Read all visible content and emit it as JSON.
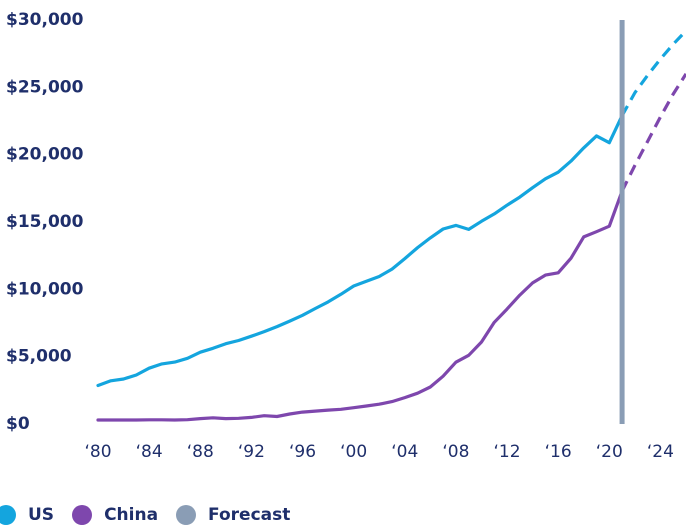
{
  "chart_data": {
    "type": "line",
    "title": "",
    "xlabel": "",
    "ylabel": "",
    "xlim": [
      1980,
      2026
    ],
    "ylim": [
      0,
      30000
    ],
    "grid": false,
    "legend_position": "bottom-left",
    "y_ticks": [
      {
        "value": 0,
        "label": "$0"
      },
      {
        "value": 5000,
        "label": "$5,000"
      },
      {
        "value": 10000,
        "label": "$10,000"
      },
      {
        "value": 15000,
        "label": "$15,000"
      },
      {
        "value": 20000,
        "label": "$20,000"
      },
      {
        "value": 25000,
        "label": "$25,000"
      },
      {
        "value": 30000,
        "label": "$30,000"
      }
    ],
    "x_ticks": [
      {
        "value": 1980,
        "label": "‘80"
      },
      {
        "value": 1984,
        "label": "‘84"
      },
      {
        "value": 1988,
        "label": "‘88"
      },
      {
        "value": 1992,
        "label": "‘92"
      },
      {
        "value": 1996,
        "label": "‘96"
      },
      {
        "value": 2000,
        "label": "‘00"
      },
      {
        "value": 2004,
        "label": "‘04"
      },
      {
        "value": 2008,
        "label": "‘08"
      },
      {
        "value": 2012,
        "label": "‘12"
      },
      {
        "value": 2016,
        "label": "‘16"
      },
      {
        "value": 2020,
        "label": "‘20"
      },
      {
        "value": 2024,
        "label": "‘24"
      }
    ],
    "forecast_year": 2021,
    "series": [
      {
        "name": "US",
        "color": "#14a5de",
        "x": [
          1980,
          1981,
          1982,
          1983,
          1984,
          1985,
          1986,
          1987,
          1988,
          1989,
          1990,
          1991,
          1992,
          1993,
          1994,
          1995,
          1996,
          1997,
          1998,
          1999,
          2000,
          2001,
          2002,
          2003,
          2004,
          2005,
          2006,
          2007,
          2008,
          2009,
          2010,
          2011,
          2012,
          2013,
          2014,
          2015,
          2016,
          2017,
          2018,
          2019,
          2020,
          2021
        ],
        "values": [
          2860,
          3210,
          3340,
          3640,
          4140,
          4460,
          4600,
          4880,
          5330,
          5620,
          5960,
          6200,
          6520,
          6860,
          7230,
          7640,
          8070,
          8580,
          9070,
          9630,
          10250,
          10600,
          10950,
          11500,
          12280,
          13100,
          13820,
          14480,
          14750,
          14450,
          15050,
          15600,
          16250,
          16850,
          17550,
          18210,
          18700,
          19520,
          20500,
          21390,
          20890,
          22900
        ],
        "forecast_x": [
          2021,
          2022,
          2023,
          2024,
          2025,
          2026
        ],
        "forecast_values": [
          22900,
          24600,
          25900,
          27100,
          28200,
          29200
        ]
      },
      {
        "name": "China",
        "color": "#7e47ad",
        "x": [
          1980,
          1981,
          1982,
          1983,
          1984,
          1985,
          1986,
          1987,
          1988,
          1989,
          1990,
          1991,
          1992,
          1993,
          1994,
          1995,
          1996,
          1997,
          1998,
          1999,
          2000,
          2001,
          2002,
          2003,
          2004,
          2005,
          2006,
          2007,
          2008,
          2009,
          2010,
          2011,
          2012,
          2013,
          2014,
          2015,
          2016,
          2017,
          2018,
          2019,
          2020,
          2021
        ],
        "values": [
          300,
          300,
          300,
          300,
          310,
          310,
          300,
          320,
          400,
          460,
          400,
          420,
          490,
          620,
          560,
          740,
          880,
          960,
          1030,
          1090,
          1210,
          1340,
          1470,
          1660,
          1960,
          2290,
          2750,
          3550,
          4590,
          5100,
          6090,
          7550,
          8530,
          9570,
          10480,
          11060,
          11230,
          12310,
          13890,
          14280,
          14690,
          17300
        ],
        "forecast_x": [
          2021,
          2022,
          2023,
          2024,
          2025,
          2026
        ],
        "forecast_values": [
          17300,
          19200,
          21000,
          22800,
          24500,
          26000
        ]
      }
    ],
    "legend": [
      {
        "label": "US",
        "color": "#14a5de"
      },
      {
        "label": "China",
        "color": "#7e47ad"
      },
      {
        "label": "Forecast",
        "color": "#8a9db5"
      }
    ]
  }
}
